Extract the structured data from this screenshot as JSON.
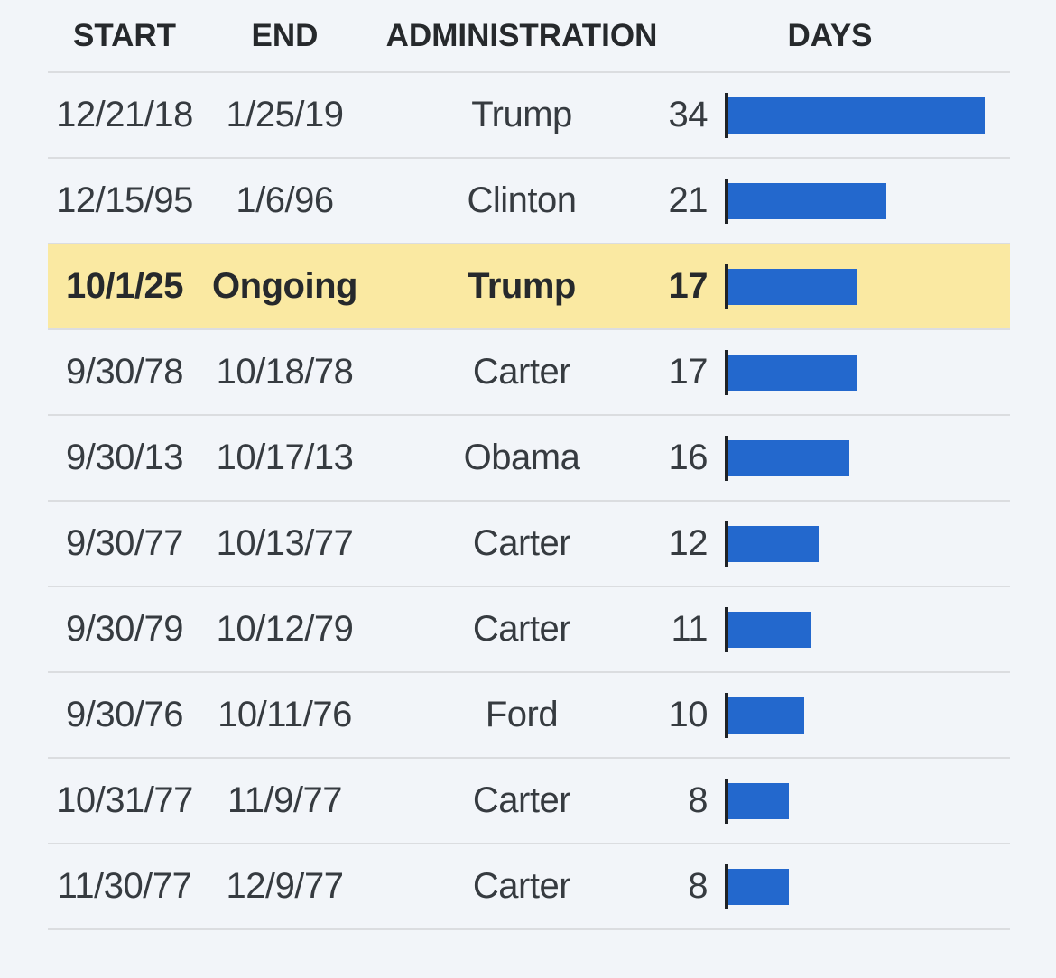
{
  "table": {
    "columns": [
      "START",
      "END",
      "ADMINISTRATION",
      "DAYS"
    ],
    "rows": [
      {
        "start": "12/21/18",
        "end": "1/25/19",
        "administration": "Trump",
        "days": 34,
        "highlight": false
      },
      {
        "start": "12/15/95",
        "end": "1/6/96",
        "administration": "Clinton",
        "days": 21,
        "highlight": false
      },
      {
        "start": "10/1/25",
        "end": "Ongoing",
        "administration": "Trump",
        "days": 17,
        "highlight": true
      },
      {
        "start": "9/30/78",
        "end": "10/18/78",
        "administration": "Carter",
        "days": 17,
        "highlight": false
      },
      {
        "start": "9/30/13",
        "end": "10/17/13",
        "administration": "Obama",
        "days": 16,
        "highlight": false
      },
      {
        "start": "9/30/77",
        "end": "10/13/77",
        "administration": "Carter",
        "days": 12,
        "highlight": false
      },
      {
        "start": "9/30/79",
        "end": "10/12/79",
        "administration": "Carter",
        "days": 11,
        "highlight": false
      },
      {
        "start": "9/30/76",
        "end": "10/11/76",
        "administration": "Ford",
        "days": 10,
        "highlight": false
      },
      {
        "start": "10/31/77",
        "end": "11/9/77",
        "administration": "Carter",
        "days": 8,
        "highlight": false
      },
      {
        "start": "11/30/77",
        "end": "12/9/77",
        "administration": "Carter",
        "days": 8,
        "highlight": false
      }
    ]
  },
  "colors": {
    "background": "#f2f5f9",
    "divider": "#dbdde0",
    "bar": "#2368cd",
    "highlight_row": "#fae9a2",
    "text": "#363b40",
    "tick": "#1f2226"
  },
  "chart_data": {
    "type": "bar",
    "orientation": "horizontal",
    "title": "",
    "xlabel": "DAYS",
    "ylabel": "",
    "xlim": [
      0,
      34
    ],
    "grid": false,
    "legend": false,
    "columns": [
      "START",
      "END",
      "ADMINISTRATION",
      "DAYS"
    ],
    "categories": [
      "Trump (12/21/18 - 1/25/19)",
      "Clinton (12/15/95 - 1/6/96)",
      "Trump (10/1/25 - Ongoing)",
      "Carter (9/30/78 - 10/18/78)",
      "Obama (9/30/13 - 10/17/13)",
      "Carter (9/30/77 - 10/13/77)",
      "Carter (9/30/79 - 10/12/79)",
      "Ford (9/30/76 - 10/11/76)",
      "Carter (10/31/77 - 11/9/77)",
      "Carter (11/30/77 - 12/9/77)"
    ],
    "values": [
      34,
      21,
      17,
      17,
      16,
      12,
      11,
      10,
      8,
      8
    ],
    "highlighted_category": "Trump (10/1/25 - Ongoing)",
    "bar_color": "#2368cd",
    "highlight_color": "#fae9a2"
  }
}
